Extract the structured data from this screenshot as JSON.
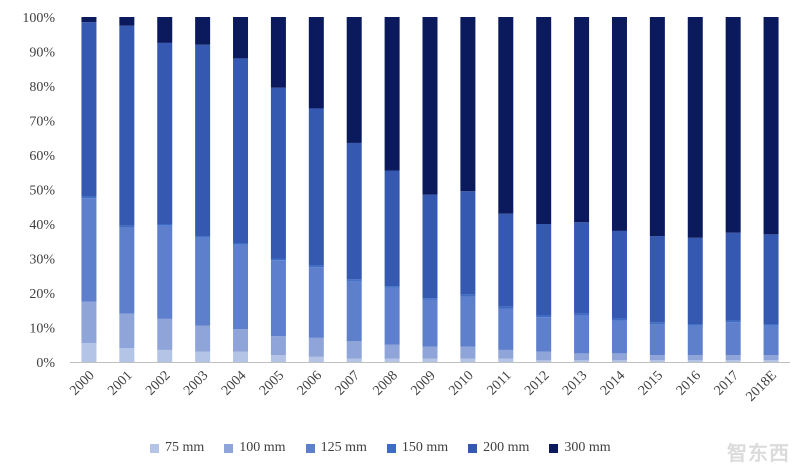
{
  "chart_data": {
    "type": "bar",
    "stacked": true,
    "percent": true,
    "title": "",
    "xlabel": "",
    "ylabel": "",
    "ylim": [
      0,
      100
    ],
    "y_ticks": [
      "0%",
      "10%",
      "20%",
      "30%",
      "40%",
      "50%",
      "60%",
      "70%",
      "80%",
      "90%",
      "100%"
    ],
    "categories": [
      "2000",
      "2001",
      "2002",
      "2003",
      "2004",
      "2005",
      "2006",
      "2007",
      "2008",
      "2009",
      "2010",
      "2011",
      "2012",
      "2013",
      "2014",
      "2015",
      "2016",
      "2017",
      "2018E"
    ],
    "series": [
      {
        "name": "75 mm",
        "color": "#b4c4e6",
        "values": [
          5.5,
          4,
          3.5,
          3,
          3,
          2,
          1.5,
          1,
          1,
          1,
          1,
          1,
          0.5,
          0.5,
          0.5,
          0.5,
          0.5,
          0.5,
          0.5
        ]
      },
      {
        "name": "100 mm",
        "color": "#8fa4d8",
        "values": [
          12,
          10,
          9,
          7.5,
          6.5,
          5.5,
          5.5,
          5,
          4,
          3.5,
          3.5,
          2.5,
          2.5,
          2,
          2,
          1.5,
          1.5,
          1.5,
          1.5
        ]
      },
      {
        "name": "125 mm",
        "color": "#5e7fcc",
        "values": [
          30,
          25,
          27,
          25.5,
          24.5,
          22,
          20.5,
          17.5,
          16.5,
          13.5,
          14.5,
          12,
          10,
          11,
          9.5,
          9,
          8.5,
          9.5,
          8.5
        ]
      },
      {
        "name": "150 mm",
        "color": "#3d6cc5",
        "values": [
          0.5,
          0.5,
          0.5,
          0.5,
          0.5,
          0.5,
          0.5,
          0.5,
          0.5,
          0.5,
          0.5,
          0.5,
          0.5,
          0.5,
          0.5,
          0.5,
          0.5,
          0.5,
          0.5
        ]
      },
      {
        "name": "200 mm",
        "color": "#3558b0",
        "values": [
          50.5,
          58,
          52.5,
          55.5,
          53.5,
          49.5,
          45.5,
          39.5,
          33.5,
          30,
          30,
          27,
          26.5,
          26.5,
          25.5,
          25,
          25,
          25.5,
          26
        ]
      },
      {
        "name": "300 mm",
        "color": "#0a1a5c",
        "values": [
          1.5,
          2.5,
          7.5,
          8,
          12,
          20.5,
          26.5,
          36.5,
          44.5,
          51.5,
          50.5,
          57,
          60,
          59.5,
          62,
          63.5,
          64,
          62.5,
          63
        ]
      }
    ]
  },
  "watermark": {
    "text": "智东西"
  }
}
